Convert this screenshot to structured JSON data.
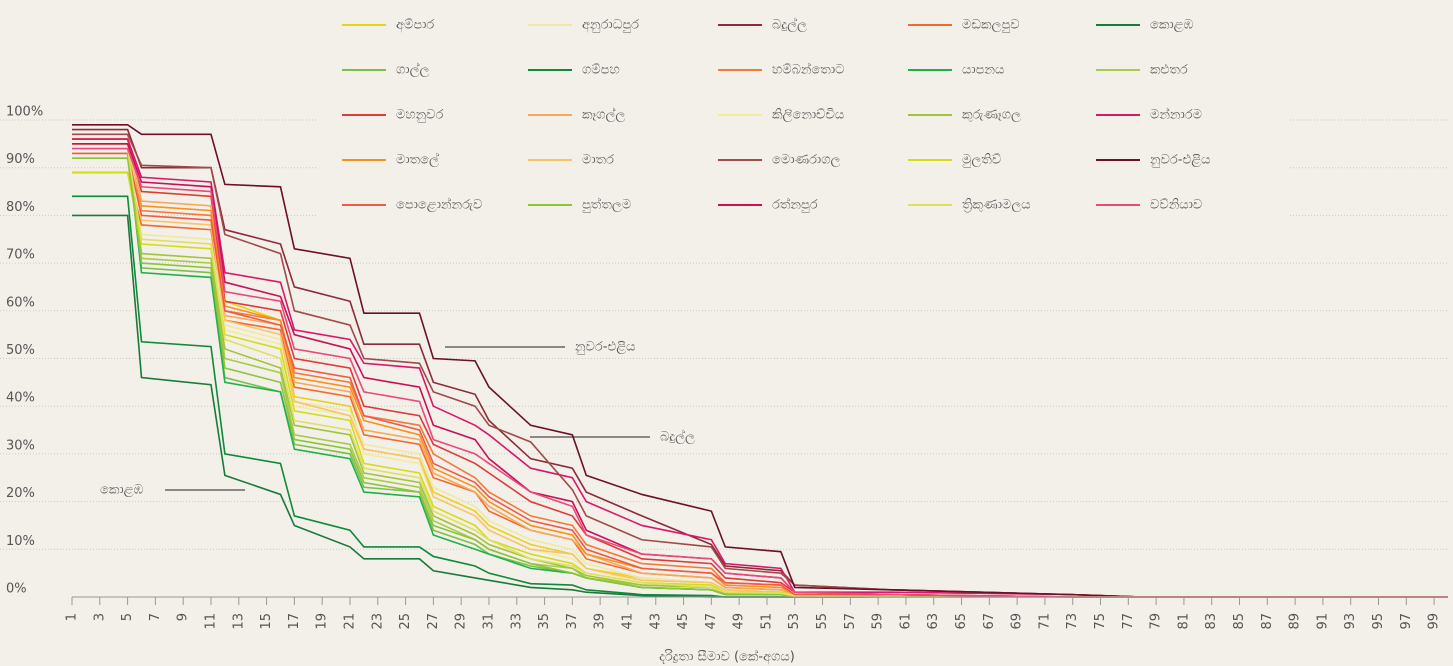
{
  "chart_data": {
    "type": "line",
    "xlabel": "දරිද්‍රතා සීමාව (කේ-අගය)",
    "x": [
      1,
      5,
      6,
      11,
      12,
      16,
      17,
      21,
      22,
      26,
      27,
      30,
      31,
      34,
      37,
      38,
      42,
      47,
      48,
      52,
      53,
      60,
      73,
      78,
      100
    ],
    "xlim": [
      1,
      100
    ],
    "xticks": [
      1,
      3,
      5,
      7,
      9,
      11,
      13,
      15,
      17,
      19,
      21,
      23,
      25,
      27,
      29,
      31,
      33,
      35,
      37,
      39,
      41,
      43,
      45,
      47,
      49,
      51,
      53,
      55,
      57,
      59,
      61,
      63,
      65,
      67,
      69,
      71,
      73,
      75,
      77,
      79,
      81,
      83,
      85,
      87,
      89,
      91,
      93,
      95,
      97,
      99
    ],
    "ylim": [
      0,
      100
    ],
    "yticks": [
      {
        "value": 0,
        "label": "0%"
      },
      {
        "value": 10,
        "label": "10%"
      },
      {
        "value": 20,
        "label": "20%"
      },
      {
        "value": 30,
        "label": "30%"
      },
      {
        "value": 40,
        "label": "40%"
      },
      {
        "value": 50,
        "label": "50%"
      },
      {
        "value": 60,
        "label": "60%"
      },
      {
        "value": 70,
        "label": "70%"
      },
      {
        "value": 80,
        "label": "80%"
      },
      {
        "value": 90,
        "label": "90%"
      },
      {
        "value": 100,
        "label": "100%"
      }
    ],
    "grid": true,
    "series": [
      {
        "name": "අම්පාර",
        "color": "#e8d21a",
        "values": [
          96,
          96,
          85,
          84,
          62,
          58,
          42,
          40,
          31,
          29,
          22,
          18,
          15,
          11,
          9,
          6,
          4,
          3,
          1.5,
          1,
          0.3,
          0,
          0,
          0,
          0
        ]
      },
      {
        "name": "අනුරාධපුර",
        "color": "#f0e9a0",
        "values": [
          93,
          93,
          76,
          75,
          57,
          54,
          41,
          39,
          32,
          30,
          23,
          19,
          16,
          12,
          10,
          7,
          4,
          3,
          1.5,
          1,
          0.3,
          0,
          0,
          0,
          0
        ]
      },
      {
        "name": "බදුල්ල",
        "color": "#8b2a3a",
        "values": [
          98,
          98,
          90,
          90,
          77,
          74,
          65,
          62,
          53,
          53,
          45,
          42.5,
          37,
          29,
          27,
          22,
          17,
          11,
          6.5,
          5.5,
          2.5,
          1.5,
          0.5,
          0,
          0
        ]
      },
      {
        "name": "මඩකලපුව",
        "color": "#f26a2e",
        "values": [
          89,
          89,
          78,
          77,
          58,
          56,
          44,
          42,
          34,
          32,
          25,
          22,
          18,
          14,
          12,
          8,
          5,
          4,
          2,
          1.5,
          0.5,
          0,
          0,
          0,
          0
        ]
      },
      {
        "name": "කොළඹ",
        "color": "#1a7a3a",
        "values": [
          80,
          80,
          46,
          44.5,
          25.5,
          21.5,
          15,
          10.5,
          8,
          8,
          5.5,
          4,
          3.5,
          2,
          1.5,
          1,
          0.3,
          0,
          0,
          0,
          0,
          0,
          0,
          0,
          0
        ]
      },
      {
        "name": "ගාල්ල",
        "color": "#7cc04a",
        "values": [
          95,
          95,
          69,
          68,
          46,
          43,
          32,
          30,
          23,
          22,
          14,
          11,
          9,
          6.5,
          5,
          4,
          2,
          1.5,
          0.5,
          0.5,
          0,
          0,
          0,
          0,
          0
        ]
      },
      {
        "name": "ගම්පහ",
        "color": "#0e8a3a",
        "values": [
          84,
          84,
          53.5,
          52.5,
          30,
          28,
          17,
          14,
          10.5,
          10.5,
          8.5,
          6.5,
          5,
          2.8,
          2.5,
          1.5,
          0.5,
          0.3,
          0,
          0,
          0,
          0,
          0,
          0,
          0
        ]
      },
      {
        "name": "හම්බන්තොට",
        "color": "#f47a3a",
        "values": [
          95,
          95,
          81,
          80,
          60,
          58,
          47,
          45,
          38,
          36,
          30,
          25,
          22,
          17,
          15,
          11,
          7,
          6,
          3,
          2.5,
          0.5,
          0.5,
          0,
          0,
          0
        ]
      },
      {
        "name": "යාපනය",
        "color": "#22b04a",
        "values": [
          94,
          94,
          68,
          67,
          45,
          43,
          31,
          29,
          22,
          21,
          13,
          10,
          9,
          6,
          5,
          4,
          2,
          1.5,
          0.5,
          0.5,
          0,
          0,
          0,
          0,
          0
        ]
      },
      {
        "name": "කළුතර",
        "color": "#a6cc4a",
        "values": [
          95,
          95,
          71,
          70,
          50,
          47,
          34,
          32,
          25,
          23,
          16,
          12,
          10,
          7,
          6,
          4,
          2.5,
          2,
          0.8,
          0.5,
          0.2,
          0,
          0,
          0,
          0
        ]
      },
      {
        "name": "මහනුවර",
        "color": "#e03a3a",
        "values": [
          96,
          96,
          85,
          84,
          62,
          60,
          50,
          48,
          40,
          38,
          32,
          28,
          26,
          20,
          17,
          13,
          8,
          7,
          4,
          3,
          1,
          0.5,
          0,
          0,
          0
        ]
      },
      {
        "name": "කෑගල්ල",
        "color": "#f7a85a",
        "values": [
          97,
          97,
          83,
          82,
          59,
          57,
          45,
          43,
          35,
          33,
          26,
          22,
          19,
          14,
          12,
          9,
          5,
          4,
          2,
          1.5,
          0.5,
          0,
          0,
          0,
          0
        ]
      },
      {
        "name": "කිලිනොච්චිය",
        "color": "#f3ec9a",
        "values": [
          95,
          95,
          80,
          79,
          56,
          53,
          40,
          38,
          30,
          28,
          21,
          17,
          14,
          10,
          8,
          6,
          3,
          2.5,
          1,
          1,
          0.3,
          0,
          0,
          0,
          0
        ]
      },
      {
        "name": "කුරුණෑගල",
        "color": "#a3c43a",
        "values": [
          94,
          94,
          72,
          71,
          52,
          48,
          36,
          34,
          26,
          24,
          17,
          13,
          11,
          8,
          6,
          4.5,
          2.5,
          2,
          1,
          0.8,
          0.2,
          0,
          0,
          0,
          0
        ]
      },
      {
        "name": "මන්නාරම",
        "color": "#d8196a",
        "values": [
          96,
          96,
          88,
          87,
          68,
          66,
          56,
          54,
          49,
          48,
          40,
          36,
          34,
          27,
          25,
          20,
          15,
          12,
          7,
          6,
          1,
          1,
          0.5,
          0,
          0
        ]
      },
      {
        "name": "මාතලේ",
        "color": "#f7921e",
        "values": [
          92,
          92,
          82,
          81,
          61,
          58,
          46,
          44,
          37,
          34,
          27,
          23,
          20,
          15,
          13,
          9,
          6,
          5,
          2.5,
          2,
          0.5,
          0,
          0,
          0,
          0
        ]
      },
      {
        "name": "මාතර",
        "color": "#f8c46a",
        "values": [
          95,
          95,
          79,
          78,
          58,
          55,
          41,
          38,
          31,
          29,
          21,
          17,
          14,
          10,
          9,
          6,
          3.5,
          3,
          1.5,
          1,
          0.3,
          0,
          0,
          0,
          0
        ]
      },
      {
        "name": "මොණරාගල",
        "color": "#a04a4a",
        "values": [
          97,
          97,
          90.5,
          90,
          76,
          72,
          60,
          57,
          50,
          49,
          43,
          40,
          36,
          32.5,
          22.5,
          17,
          12,
          10.5,
          6,
          5,
          2.5,
          1.5,
          0.5,
          0,
          0
        ]
      },
      {
        "name": "මුලතිව්",
        "color": "#d4dc1a",
        "values": [
          89,
          89,
          74,
          73,
          55,
          52,
          39,
          37,
          28,
          26,
          19,
          15,
          12,
          9,
          7,
          5,
          3,
          2.5,
          1,
          1,
          0.2,
          0,
          0,
          0,
          0
        ]
      },
      {
        "name": "නුවර-එළිය",
        "color": "#6b0f2a",
        "values": [
          99,
          99,
          97,
          97,
          86.5,
          86,
          73,
          71,
          59.5,
          59.5,
          50,
          49.5,
          44,
          36,
          34,
          25.5,
          21.5,
          18,
          10.5,
          9.5,
          2,
          1.5,
          0.5,
          0,
          0
        ]
      },
      {
        "name": "පොළොන්නරුව",
        "color": "#ee5a4a",
        "values": [
          93,
          93,
          80,
          79,
          60,
          57,
          48,
          46,
          38,
          35,
          28,
          24,
          21,
          16,
          14,
          10,
          6,
          5,
          3,
          2.5,
          0.5,
          0.5,
          0,
          0,
          0
        ]
      },
      {
        "name": "පුත්තලම",
        "color": "#8cc43a",
        "values": [
          92,
          92,
          70,
          69,
          48,
          45,
          33,
          31,
          24,
          22,
          15,
          12,
          10,
          7,
          5,
          4,
          2,
          1.5,
          0.5,
          0.5,
          0,
          0,
          0,
          0,
          0
        ]
      },
      {
        "name": "රත්නපුර",
        "color": "#c8105a",
        "values": [
          95,
          95,
          87,
          86,
          66,
          63,
          55,
          52,
          46,
          44,
          36,
          33,
          29,
          22,
          20,
          14,
          9,
          8,
          5,
          4,
          1,
          0.5,
          0,
          0,
          0
        ]
      },
      {
        "name": "ත්‍රිකුණාමලය",
        "color": "#e0e060",
        "values": [
          94,
          94,
          75,
          74,
          54,
          50,
          37,
          35,
          27,
          25,
          18,
          14,
          12,
          8,
          6.5,
          5,
          3,
          2,
          1,
          0.8,
          0.2,
          0,
          0,
          0,
          0
        ]
      },
      {
        "name": "වව්නියාව",
        "color": "#e94a7a",
        "values": [
          94,
          94,
          86,
          85,
          64,
          62,
          52,
          50,
          43,
          41,
          33,
          30,
          28,
          22,
          19,
          13,
          9,
          8,
          5,
          4,
          1,
          0.5,
          0,
          0,
          0
        ]
      }
    ],
    "annotations": [
      "නුවර-එළිය",
      "බදුල්ල",
      "කොළඹ"
    ]
  }
}
